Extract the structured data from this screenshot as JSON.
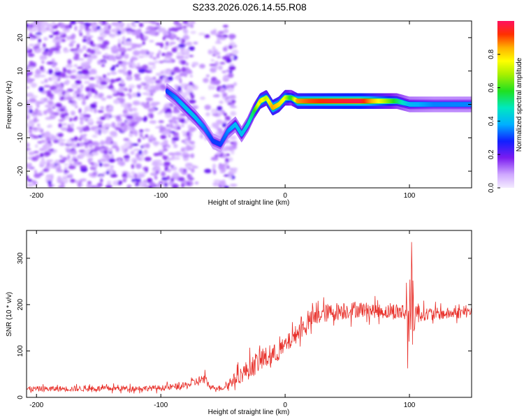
{
  "title": "S233.2026.026.14.55.R08",
  "chart_data": [
    {
      "id": "spectrogram",
      "type": "heatmap",
      "xlabel": "Height of straight line (km)",
      "ylabel": "Frequency (Hz)",
      "xlim": [
        -208,
        150
      ],
      "ylim": [
        -25,
        25
      ],
      "xticks": [
        -200,
        -100,
        0,
        100
      ],
      "yticks": [
        -20,
        -10,
        0,
        10,
        20
      ],
      "xtick_labels": [
        "-200",
        "-100",
        "0",
        "100"
      ],
      "ytick_labels": [
        "-20",
        "-10",
        "0",
        "10",
        "20"
      ],
      "colorbar": {
        "label": "Normalized spectral amplitude",
        "range": [
          0,
          1
        ],
        "ticks": [
          0,
          0.2,
          0.4,
          0.6,
          0.8
        ],
        "tick_labels": [
          "0.0",
          "0.2",
          "0.4",
          "0.6",
          "0.8"
        ]
      },
      "signal_track": {
        "x": [
          -95,
          -88,
          -80,
          -72,
          -65,
          -58,
          -52,
          -46,
          -40,
          -35,
          -30,
          -25,
          -20,
          -15,
          -10,
          -5,
          0,
          5,
          10,
          20,
          40,
          60,
          80,
          90,
          100,
          120,
          150
        ],
        "frequency": [
          4,
          2,
          -1,
          -4,
          -7,
          -11,
          -12,
          -8,
          -6,
          -9,
          -6,
          -2,
          1,
          2,
          -1,
          0,
          2,
          2,
          1,
          1,
          1,
          1,
          1,
          1,
          0,
          0,
          0
        ],
        "amplitude": [
          0.3,
          0.35,
          0.4,
          0.4,
          0.35,
          0.3,
          0.3,
          0.35,
          0.4,
          0.4,
          0.45,
          0.55,
          0.8,
          0.7,
          0.85,
          0.8,
          0.75,
          0.55,
          0.85,
          0.9,
          0.95,
          0.98,
          0.7,
          0.55,
          0.4,
          0.35,
          0.35
        ]
      },
      "noise_region_x": [
        -208,
        -40
      ]
    },
    {
      "id": "snr",
      "type": "line",
      "xlabel": "Height of straight line (km)",
      "ylabel": "SNR (10 * v/v)",
      "xlim": [
        -208,
        150
      ],
      "ylim": [
        0,
        360
      ],
      "xticks": [
        -200,
        -100,
        0,
        100
      ],
      "yticks": [
        0,
        100,
        200,
        300
      ],
      "xtick_labels": [
        "-200",
        "-100",
        "0",
        "100"
      ],
      "ytick_labels": [
        "0",
        "100",
        "200",
        "300"
      ],
      "series": [
        {
          "name": "SNR",
          "color": "#e8302a",
          "x": [
            -208,
            -150,
            -100,
            -80,
            -65,
            -60,
            -50,
            -40,
            -30,
            -20,
            -10,
            0,
            10,
            20,
            30,
            40,
            60,
            80,
            95,
            100,
            103,
            105,
            110,
            130,
            150
          ],
          "y": [
            18,
            19,
            20,
            25,
            40,
            22,
            20,
            40,
            60,
            80,
            90,
            110,
            140,
            165,
            180,
            185,
            190,
            185,
            185,
            180,
            190,
            185,
            180,
            180,
            185
          ],
          "noise_amplitude": [
            12,
            12,
            12,
            15,
            25,
            10,
            10,
            30,
            45,
            50,
            45,
            40,
            40,
            40,
            40,
            40,
            35,
            30,
            40,
            150,
            170,
            60,
            30,
            25,
            25
          ]
        }
      ]
    }
  ]
}
